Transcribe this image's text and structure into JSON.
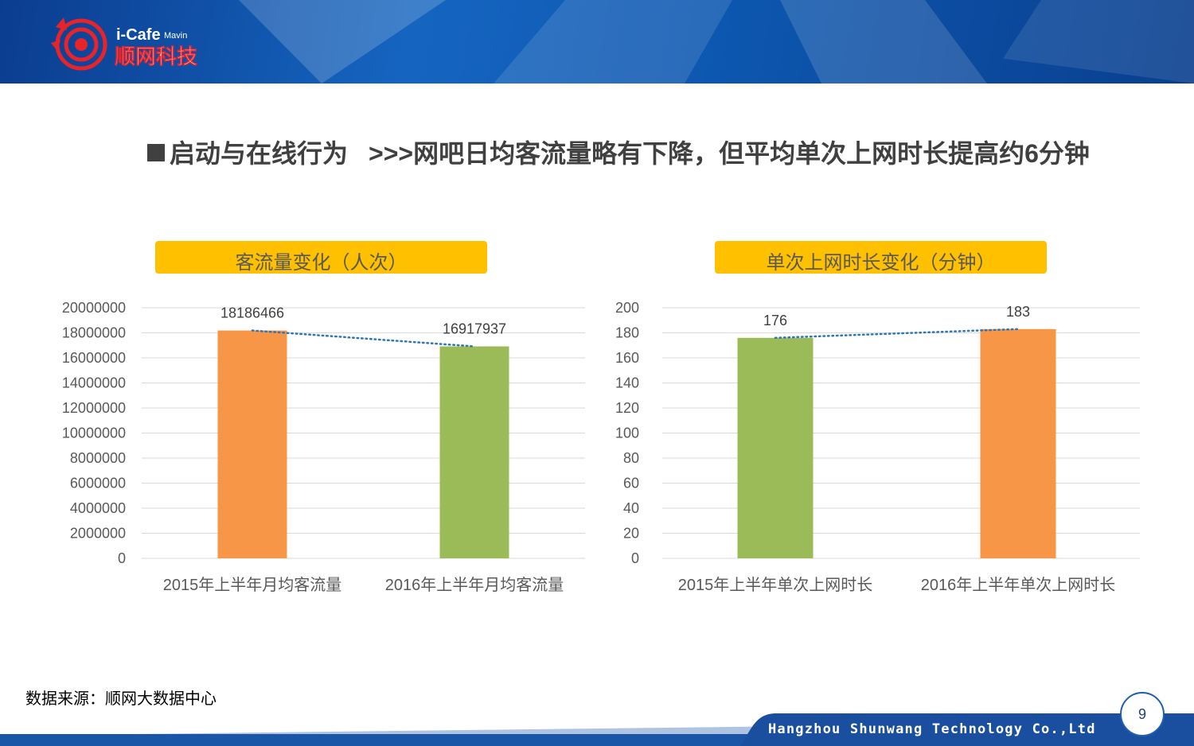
{
  "header": {
    "brand_top": "i-Cafe",
    "brand_sub": "Mavin",
    "brand_cn": "顺网科技"
  },
  "title": {
    "section": "启动与在线行为",
    "headline": ">>>网吧日均客流量略有下降，但平均单次上网时长提高约6分钟"
  },
  "colors": {
    "orange": "#f79646",
    "green": "#9bbb59",
    "yellow": "#ffc000",
    "trend": "#2e75b6",
    "header_blue": "#1565c0"
  },
  "chart_data": [
    {
      "type": "bar",
      "title": "客流量变化（人次）",
      "categories": [
        "2015年上半年月均客流量",
        "2016年上半年月均客流量"
      ],
      "values": [
        18186466,
        16917937
      ],
      "data_labels": [
        "18186466",
        "16917937"
      ],
      "bar_colors": [
        "#f79646",
        "#9bbb59"
      ],
      "ylim": [
        0,
        20000000
      ],
      "yticks": [
        "0",
        "2000000",
        "4000000",
        "6000000",
        "8000000",
        "10000000",
        "12000000",
        "14000000",
        "16000000",
        "18000000",
        "20000000"
      ],
      "grid": true,
      "trendline": "dotted"
    },
    {
      "type": "bar",
      "title": "单次上网时长变化（分钟）",
      "categories": [
        "2015年上半年单次上网时长",
        "2016年上半年单次上网时长"
      ],
      "values": [
        176,
        183
      ],
      "data_labels": [
        "176",
        "183"
      ],
      "bar_colors": [
        "#9bbb59",
        "#f79646"
      ],
      "ylim": [
        0,
        200
      ],
      "yticks": [
        "0",
        "20",
        "40",
        "60",
        "80",
        "100",
        "120",
        "140",
        "160",
        "180",
        "200"
      ],
      "grid": true,
      "trendline": "dotted"
    }
  ],
  "source": "数据来源：顺网大数据中心",
  "footer": {
    "company": "Hangzhou Shunwang Technology Co.,Ltd",
    "page": "9"
  }
}
